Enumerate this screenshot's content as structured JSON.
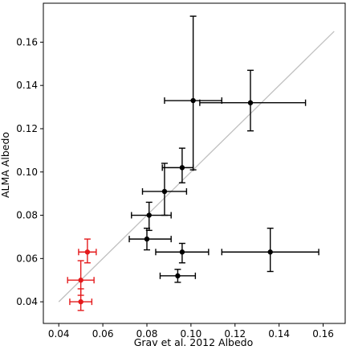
{
  "chart_data": {
    "type": "scatter",
    "title": "",
    "xlabel": "Grav et al. 2012 Albedo",
    "ylabel": "ALMA Albedo",
    "xlim": [
      0.033,
      0.17
    ],
    "ylim": [
      0.03,
      0.178
    ],
    "xticks": [
      0.04,
      0.06,
      0.08,
      0.1,
      0.12,
      0.14,
      0.16
    ],
    "yticks": [
      0.04,
      0.06,
      0.08,
      0.1,
      0.12,
      0.14,
      0.16
    ],
    "xtick_labels": [
      "0.04",
      "0.06",
      "0.08",
      "0.10",
      "0.12",
      "0.14",
      "0.16"
    ],
    "ytick_labels": [
      "0.04",
      "0.06",
      "0.08",
      "0.10",
      "0.12",
      "0.14",
      "0.16"
    ],
    "grid": false,
    "legend": "none",
    "reference_line": {
      "label": "",
      "points": [
        [
          0.04,
          0.04
        ],
        [
          0.165,
          0.165
        ]
      ],
      "color": "#c0c0c0"
    },
    "series": [
      {
        "color": "#000000",
        "points": [
          {
            "x": 0.101,
            "y": 0.133,
            "xerr_minus": 0.013,
            "xerr_plus": 0.013,
            "yerr_minus": 0.032,
            "yerr_plus": 0.039
          },
          {
            "x": 0.127,
            "y": 0.132,
            "xerr_minus": 0.023,
            "xerr_plus": 0.025,
            "yerr_minus": 0.013,
            "yerr_plus": 0.015
          },
          {
            "x": 0.096,
            "y": 0.102,
            "xerr_minus": 0.009,
            "xerr_plus": 0.005,
            "yerr_minus": 0.007,
            "yerr_plus": 0.009
          },
          {
            "x": 0.088,
            "y": 0.091,
            "xerr_minus": 0.01,
            "xerr_plus": 0.01,
            "yerr_minus": 0.011,
            "yerr_plus": 0.013
          },
          {
            "x": 0.081,
            "y": 0.08,
            "xerr_minus": 0.008,
            "xerr_plus": 0.01,
            "yerr_minus": 0.007,
            "yerr_plus": 0.006
          },
          {
            "x": 0.08,
            "y": 0.069,
            "xerr_minus": 0.008,
            "xerr_plus": 0.011,
            "yerr_minus": 0.005,
            "yerr_plus": 0.005
          },
          {
            "x": 0.096,
            "y": 0.063,
            "xerr_minus": 0.012,
            "xerr_plus": 0.012,
            "yerr_minus": 0.005,
            "yerr_plus": 0.004
          },
          {
            "x": 0.094,
            "y": 0.052,
            "xerr_minus": 0.008,
            "xerr_plus": 0.008,
            "yerr_minus": 0.003,
            "yerr_plus": 0.003
          },
          {
            "x": 0.136,
            "y": 0.063,
            "xerr_minus": 0.022,
            "xerr_plus": 0.022,
            "yerr_minus": 0.009,
            "yerr_plus": 0.011
          }
        ]
      },
      {
        "color": "#e41a1c",
        "points": [
          {
            "x": 0.053,
            "y": 0.063,
            "xerr_minus": 0.004,
            "xerr_plus": 0.004,
            "yerr_minus": 0.005,
            "yerr_plus": 0.006
          },
          {
            "x": 0.05,
            "y": 0.05,
            "xerr_minus": 0.006,
            "xerr_plus": 0.006,
            "yerr_minus": 0.007,
            "yerr_plus": 0.009
          },
          {
            "x": 0.05,
            "y": 0.04,
            "xerr_minus": 0.005,
            "xerr_plus": 0.005,
            "yerr_minus": 0.004,
            "yerr_plus": 0.006
          }
        ]
      }
    ]
  }
}
